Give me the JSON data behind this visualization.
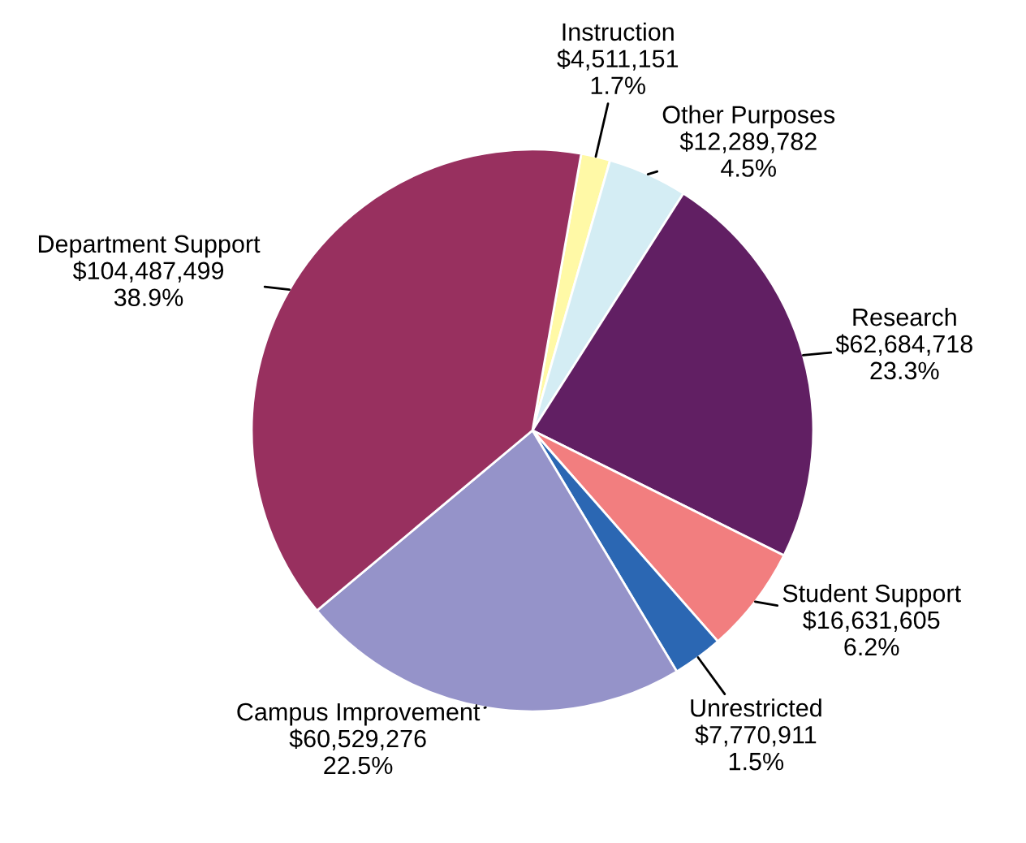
{
  "chart_data": {
    "type": "pie",
    "categories": [
      "Instruction",
      "Other Purposes",
      "Research",
      "Student Support",
      "Unrestricted",
      "Campus Improvement",
      "Department Support"
    ],
    "values": [
      4511151,
      12289782,
      62684718,
      16631605,
      7770911,
      60529276,
      104487499
    ],
    "colors": [
      "#fff9a6",
      "#d4edf4",
      "#611f63",
      "#f27e7f",
      "#2b67b3",
      "#9593c9",
      "#98305f"
    ],
    "value_labels": [
      "$4,511,151\n1.7%",
      "$12,289,782\n4.5%",
      "$62,684,718\n23.3%",
      "$16,631,605\n6.2%",
      "$7,770,911\n1.5%",
      "$60,529,276\n22.5%",
      "$104,487,499\n38.9%"
    ]
  }
}
